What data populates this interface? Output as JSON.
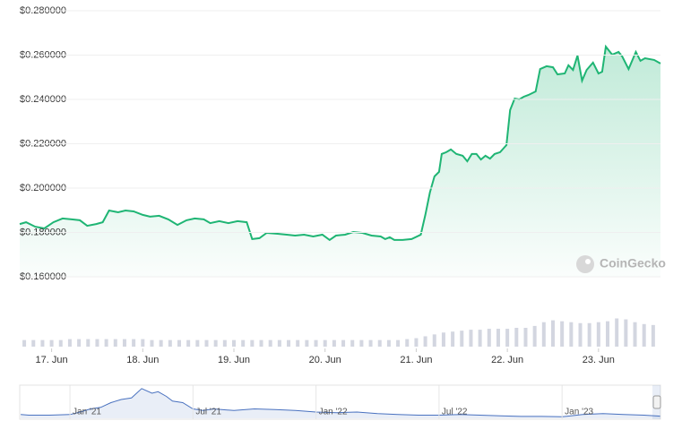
{
  "chart_data": [
    {
      "type": "line",
      "x": [
        16.65,
        16.72,
        16.82,
        16.92,
        17.02,
        17.12,
        17.22,
        17.31,
        17.39,
        17.49,
        17.56,
        17.63,
        17.73,
        17.81,
        17.9,
        18.0,
        18.08,
        18.18,
        18.28,
        18.38,
        18.48,
        18.57,
        18.67,
        18.74,
        18.84,
        18.94,
        19.04,
        19.14,
        19.2,
        19.28,
        19.36,
        19.48,
        19.58,
        19.67,
        19.77,
        19.87,
        19.97,
        20.05,
        20.12,
        20.22,
        20.31,
        20.41,
        20.51,
        20.61,
        20.66,
        20.71,
        20.76,
        20.85,
        20.95,
        21.05,
        21.1,
        21.15,
        21.2,
        21.25,
        21.28,
        21.33,
        21.38,
        21.44,
        21.51,
        21.56,
        21.61,
        21.66,
        21.71,
        21.76,
        21.81,
        21.86,
        21.92,
        21.99,
        22.03,
        22.08,
        22.13,
        22.18,
        22.23,
        22.31,
        22.36,
        22.43,
        22.5,
        22.55,
        22.63,
        22.67,
        22.72,
        22.77,
        22.82,
        22.87,
        22.94,
        23.0,
        23.04,
        23.08,
        23.15,
        23.22,
        23.26,
        23.33,
        23.41,
        23.46,
        23.51,
        23.61,
        23.68
      ],
      "series": [
        {
          "color": "#1fb574",
          "values": [
            0.1838,
            0.1846,
            0.1826,
            0.1818,
            0.1846,
            0.1863,
            0.1859,
            0.1855,
            0.183,
            0.1838,
            0.1846,
            0.1899,
            0.1891,
            0.1899,
            0.1895,
            0.1879,
            0.1871,
            0.1875,
            0.1859,
            0.1834,
            0.1855,
            0.1863,
            0.1859,
            0.1842,
            0.1851,
            0.1842,
            0.1851,
            0.1846,
            0.177,
            0.1774,
            0.1798,
            0.1794,
            0.179,
            0.1786,
            0.179,
            0.1782,
            0.179,
            0.1766,
            0.1786,
            0.179,
            0.1802,
            0.1798,
            0.1786,
            0.1782,
            0.177,
            0.1778,
            0.1766,
            0.1766,
            0.177,
            0.179,
            0.1879,
            0.198,
            0.2053,
            0.2073,
            0.2154,
            0.2162,
            0.2174,
            0.2154,
            0.2146,
            0.2121,
            0.2154,
            0.2154,
            0.2129,
            0.2146,
            0.2133,
            0.2154,
            0.2162,
            0.2194,
            0.2352,
            0.2404,
            0.24,
            0.2412,
            0.242,
            0.2436,
            0.2537,
            0.255,
            0.2545,
            0.2513,
            0.2517,
            0.2554,
            0.2533,
            0.2598,
            0.2485,
            0.2533,
            0.2566,
            0.2517,
            0.2525,
            0.2638,
            0.2602,
            0.2614,
            0.2594,
            0.2537,
            0.2614,
            0.2574,
            0.2586,
            0.2578,
            0.2562
          ]
        }
      ],
      "xlim": [
        16.65,
        23.68
      ],
      "xticks": [
        {
          "value": 17,
          "label": "17. Jun"
        },
        {
          "value": 18,
          "label": "18. Jun"
        },
        {
          "value": 19,
          "label": "19. Jun"
        },
        {
          "value": 20,
          "label": "20. Jun"
        },
        {
          "value": 21,
          "label": "21. Jun"
        },
        {
          "value": 22,
          "label": "22. Jun"
        },
        {
          "value": 23,
          "label": "23. Jun"
        }
      ],
      "ylim": [
        0.16,
        0.28
      ],
      "yticks": [
        {
          "value": 0.16,
          "label": "$0.160000"
        },
        {
          "value": 0.18,
          "label": "$0.180000"
        },
        {
          "value": 0.2,
          "label": "$0.200000"
        },
        {
          "value": 0.22,
          "label": "$0.220000"
        },
        {
          "value": 0.24,
          "label": "$0.240000"
        },
        {
          "value": 0.26,
          "label": "$0.260000"
        },
        {
          "value": 0.28,
          "label": "$0.280000"
        }
      ],
      "grid": true,
      "watermark": "CoinGecko",
      "volume": {
        "color": "#d3d6e0",
        "ylim": [
          0,
          40
        ],
        "x": [
          16.7,
          16.8,
          16.9,
          17.0,
          17.1,
          17.2,
          17.3,
          17.4,
          17.5,
          17.6,
          17.7,
          17.8,
          17.9,
          18.0,
          18.1,
          18.2,
          18.3,
          18.4,
          18.5,
          18.6,
          18.7,
          18.8,
          18.9,
          19.0,
          19.1,
          19.2,
          19.3,
          19.4,
          19.5,
          19.6,
          19.7,
          19.8,
          19.9,
          20.0,
          20.1,
          20.2,
          20.3,
          20.4,
          20.5,
          20.6,
          20.7,
          20.8,
          20.9,
          21.0,
          21.1,
          21.2,
          21.3,
          21.4,
          21.5,
          21.6,
          21.7,
          21.8,
          21.9,
          22.0,
          22.1,
          22.2,
          22.3,
          22.4,
          22.5,
          22.6,
          22.7,
          22.8,
          22.9,
          23.0,
          23.1,
          23.2,
          23.3,
          23.4,
          23.5,
          23.6
        ],
        "values": [
          7,
          7,
          7,
          7,
          7,
          8,
          8,
          8,
          8,
          8,
          8,
          8,
          8,
          8,
          7,
          7,
          7,
          7,
          7,
          7,
          7,
          7,
          7,
          7,
          7,
          7,
          7,
          7,
          7,
          7,
          7,
          7,
          7,
          7,
          7,
          7,
          7,
          7,
          7,
          7,
          7,
          7,
          8,
          9,
          11,
          13,
          15,
          16,
          17,
          18,
          18,
          19,
          19,
          19,
          20,
          20,
          22,
          26,
          28,
          27,
          26,
          25,
          25,
          26,
          27,
          30,
          29,
          26,
          24,
          23
        ]
      }
    },
    {
      "type": "area",
      "x": [
        -2.4,
        -2,
        -1,
        0,
        0.5,
        1,
        1.5,
        2,
        2.5,
        3,
        3.5,
        4,
        4.3,
        4.7,
        5,
        5.5,
        6,
        6.5,
        7,
        8,
        9,
        10,
        11,
        12,
        13,
        14,
        15,
        16,
        17,
        18,
        19,
        20,
        21,
        22,
        23,
        24,
        25,
        26,
        27,
        28,
        28.8
      ],
      "values": [
        0.12,
        0.1,
        0.1,
        0.12,
        0.2,
        0.3,
        0.35,
        0.5,
        0.6,
        0.65,
        0.95,
        0.8,
        0.85,
        0.7,
        0.55,
        0.5,
        0.3,
        0.25,
        0.3,
        0.25,
        0.3,
        0.28,
        0.25,
        0.2,
        0.18,
        0.2,
        0.15,
        0.12,
        0.1,
        0.1,
        0.12,
        0.1,
        0.08,
        0.06,
        0.06,
        0.05,
        0.12,
        0.15,
        0.12,
        0.1,
        0.07
      ],
      "color": "#4a72c0",
      "xlim": [
        -2.45,
        28.8
      ],
      "ylim": [
        0,
        1
      ],
      "xticks": [
        {
          "value": 0,
          "label": "Jan '21"
        },
        {
          "value": 6,
          "label": "Jul '21"
        },
        {
          "value": 12,
          "label": "Jan '22"
        },
        {
          "value": 18,
          "label": "Jul '22"
        },
        {
          "value": 24,
          "label": "Jan '23"
        }
      ]
    }
  ]
}
